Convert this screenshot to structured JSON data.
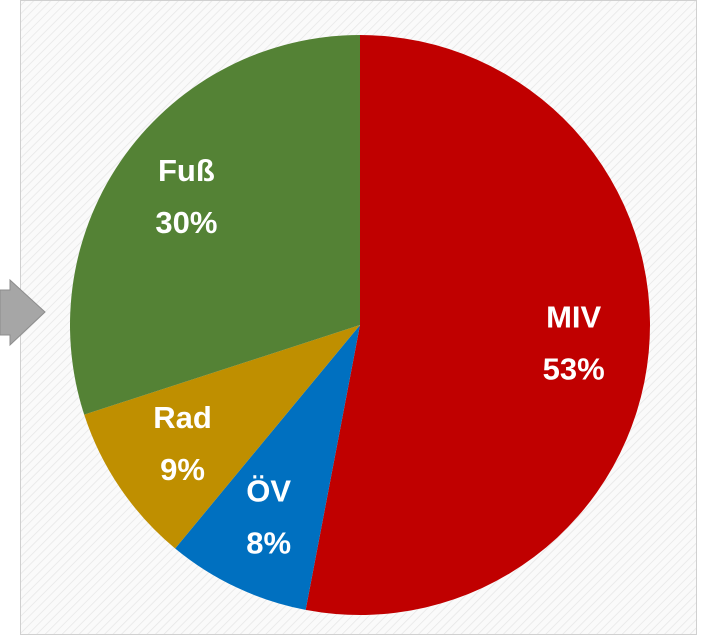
{
  "chart_data": {
    "type": "pie",
    "categories": [
      "MIV",
      "ÖV",
      "Rad",
      "Fuß"
    ],
    "values": [
      53,
      8,
      9,
      30
    ],
    "value_labels": [
      "53%",
      "8%",
      "9%",
      "30%"
    ],
    "colors": [
      "#c00000",
      "#0070c0",
      "#bf8f00",
      "#548235"
    ]
  }
}
